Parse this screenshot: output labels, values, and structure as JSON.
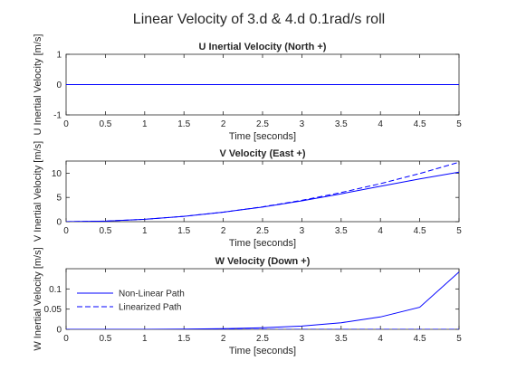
{
  "figure": {
    "title": "Linear Velocity of 3.d & 4.d 0.1rad/s roll"
  },
  "colors": {
    "series": "#0000ff",
    "axes": "#262626",
    "background": "#ffffff"
  },
  "chart_data": [
    {
      "type": "line",
      "title": "U Inertial Velocity (North +)",
      "xlabel": "Time [seconds]",
      "ylabel": "U Inertial Velocity [m/s]",
      "xlim": [
        0,
        5
      ],
      "ylim": [
        -1,
        1
      ],
      "xticks": [
        "0",
        "0.5",
        "1",
        "1.5",
        "2",
        "2.5",
        "3",
        "3.5",
        "4",
        "4.5",
        "5"
      ],
      "yticks": [
        "-1",
        "0",
        "1"
      ],
      "grid": false,
      "x": [
        0,
        1,
        2,
        3,
        4,
        5
      ],
      "series": [
        {
          "dash": "solid",
          "values": [
            0,
            0,
            0,
            0,
            0,
            0
          ]
        },
        {
          "dash": "dashed",
          "values": [
            0,
            0,
            0,
            0,
            0,
            0
          ]
        }
      ]
    },
    {
      "type": "line",
      "title": "V Velocity (East +)",
      "xlabel": "Time [seconds]",
      "ylabel": "V Inertial Velocity [m/s]",
      "xlim": [
        0,
        5
      ],
      "ylim": [
        0,
        12.5
      ],
      "xticks": [
        "0",
        "0.5",
        "1",
        "1.5",
        "2",
        "2.5",
        "3",
        "3.5",
        "4",
        "4.5",
        "5"
      ],
      "yticks": [
        "0",
        "5",
        "10"
      ],
      "grid": false,
      "x": [
        0,
        0.5,
        1,
        1.5,
        2,
        2.5,
        3,
        3.5,
        4,
        4.5,
        5
      ],
      "series": [
        {
          "name": "Non-Linear Path",
          "dash": "solid",
          "values": [
            0,
            0.12,
            0.49,
            1.1,
            1.95,
            3.0,
            4.3,
            5.75,
            7.3,
            8.8,
            10.2
          ]
        },
        {
          "name": "Linearized Path",
          "dash": "dashed",
          "values": [
            0,
            0.12,
            0.49,
            1.1,
            1.96,
            3.06,
            4.41,
            6.0,
            7.84,
            9.92,
            12.25
          ]
        }
      ]
    },
    {
      "type": "line",
      "title": "W Velocity (Down +)",
      "xlabel": "Time [seconds]",
      "ylabel": "W Inertial Velocity [m/s]",
      "xlim": [
        0,
        5
      ],
      "ylim": [
        0,
        0.15
      ],
      "xticks": [
        "0",
        "0.5",
        "1",
        "1.5",
        "2",
        "2.5",
        "3",
        "3.5",
        "4",
        "4.5",
        "5"
      ],
      "yticks": [
        "0",
        "0.05",
        "0.1"
      ],
      "grid": false,
      "legend": {
        "placement": "middle-left",
        "entries": [
          "Non-Linear Path",
          "Linearized Path"
        ]
      },
      "x": [
        0,
        0.5,
        1,
        1.5,
        2,
        2.5,
        3,
        3.5,
        4,
        4.5,
        5
      ],
      "series": [
        {
          "name": "Non-Linear Path",
          "dash": "solid",
          "values": [
            0,
            2e-05,
            0.0001,
            0.0005,
            0.0015,
            0.0037,
            0.0081,
            0.0163,
            0.0307,
            0.0546,
            0.142
          ]
        },
        {
          "name": "Linearized Path",
          "dash": "dashed",
          "values": [
            0,
            0,
            0,
            0,
            0,
            0,
            0,
            0,
            0,
            0,
            0
          ]
        }
      ]
    }
  ]
}
